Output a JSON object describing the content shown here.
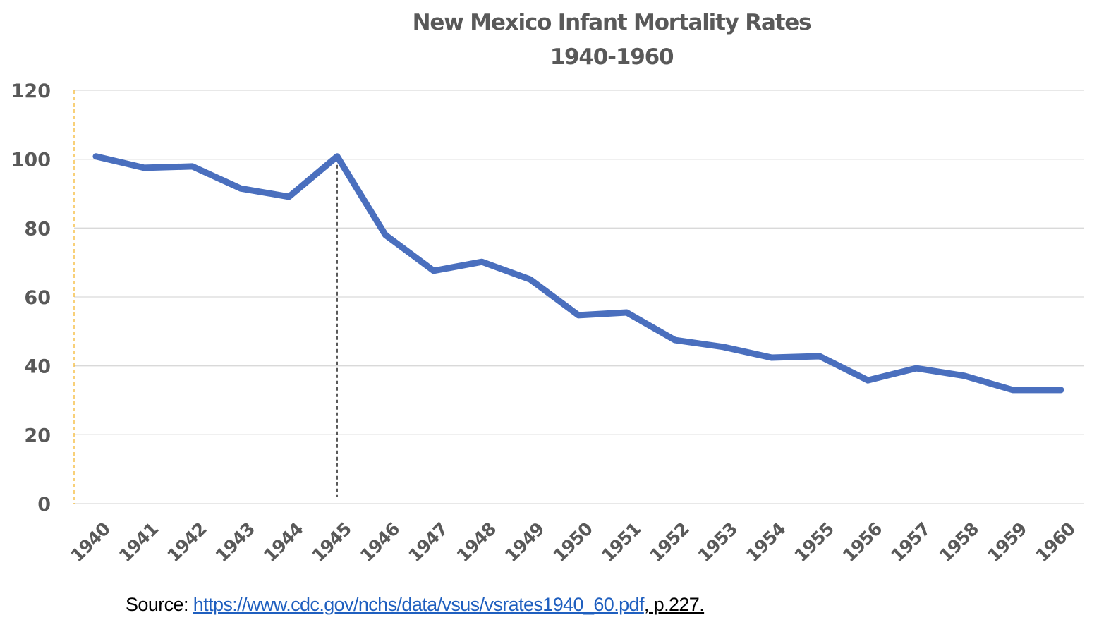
{
  "chart_data": {
    "type": "line",
    "title": "New Mexico Infant Mortality Rates",
    "subtitle": "1940-1960",
    "xlabel": "",
    "ylabel": "",
    "ylim": [
      0,
      120
    ],
    "yticks": [
      0,
      20,
      40,
      60,
      80,
      100,
      120
    ],
    "grid": true,
    "legend": "none",
    "categories": [
      "1940",
      "1941",
      "1942",
      "1943",
      "1944",
      "1945",
      "1946",
      "1947",
      "1948",
      "1949",
      "1950",
      "1951",
      "1952",
      "1953",
      "1954",
      "1955",
      "1956",
      "1957",
      "1958",
      "1959",
      "1960"
    ],
    "series": [
      {
        "name": "Infant Mortality Rate",
        "color": "#4a6fbe",
        "values": [
          100.8,
          97.5,
          97.9,
          91.5,
          89.1,
          100.8,
          78.0,
          67.6,
          70.2,
          65.1,
          54.7,
          55.5,
          47.5,
          45.5,
          42.4,
          42.8,
          35.8,
          39.3,
          37.1,
          33.0,
          33.0
        ]
      }
    ],
    "annotations": [
      {
        "type": "vertical-dashed-line",
        "at": "1945",
        "color": "#000000"
      },
      {
        "type": "vertical-dashed-line",
        "at": "y-axis",
        "color": "#f5b731"
      }
    ]
  },
  "source": {
    "prefix": "Source: ",
    "link_text": "https://www.cdc.gov/nchs/data/vsus/vsrates1940_60.pdf",
    "suffix": ", p.227."
  },
  "colors": {
    "line": "#4a6fbe",
    "grid": "#d9d9d9",
    "text": "#595959",
    "link": "#1f5fbf",
    "yaxis_dash": "#f5b731"
  }
}
